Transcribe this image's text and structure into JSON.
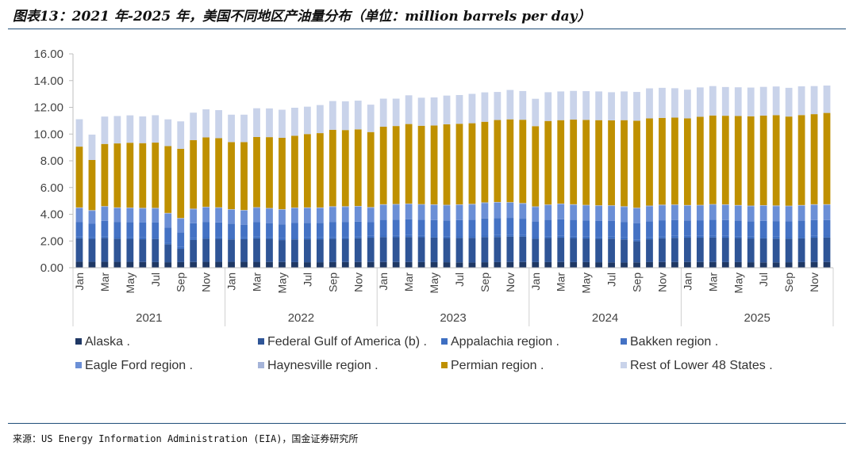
{
  "title": "图表13：2021 年-2025 年，美国不同地区产油量分布（单位：million barrels per day）",
  "source": "来源：US Energy Information Administration (EIA)，国金证券研究所",
  "chart_data": {
    "type": "bar",
    "stacked": true,
    "ylim": [
      0,
      16
    ],
    "yticks": [
      "0.00",
      "2.00",
      "4.00",
      "6.00",
      "8.00",
      "10.00",
      "12.00",
      "14.00",
      "16.00"
    ],
    "years": [
      "2021",
      "2022",
      "2023",
      "2024",
      "2025"
    ],
    "month_labels": [
      "Jan",
      "Mar",
      "May",
      "Jul",
      "Sep",
      "Nov"
    ],
    "categories": [
      "2021-01",
      "2021-02",
      "2021-03",
      "2021-04",
      "2021-05",
      "2021-06",
      "2021-07",
      "2021-08",
      "2021-09",
      "2021-10",
      "2021-11",
      "2021-12",
      "2022-01",
      "2022-02",
      "2022-03",
      "2022-04",
      "2022-05",
      "2022-06",
      "2022-07",
      "2022-08",
      "2022-09",
      "2022-10",
      "2022-11",
      "2022-12",
      "2023-01",
      "2023-02",
      "2023-03",
      "2023-04",
      "2023-05",
      "2023-06",
      "2023-07",
      "2023-08",
      "2023-09",
      "2023-10",
      "2023-11",
      "2023-12",
      "2024-01",
      "2024-02",
      "2024-03",
      "2024-04",
      "2024-05",
      "2024-06",
      "2024-07",
      "2024-08",
      "2024-09",
      "2024-10",
      "2024-11",
      "2024-12",
      "2025-01",
      "2025-02",
      "2025-03",
      "2025-04",
      "2025-05",
      "2025-06",
      "2025-07",
      "2025-08",
      "2025-09",
      "2025-10",
      "2025-11",
      "2025-12"
    ],
    "series": [
      {
        "name": "Alaska .",
        "color": "#1f3864",
        "values": [
          0.45,
          0.44,
          0.45,
          0.44,
          0.44,
          0.43,
          0.42,
          0.41,
          0.42,
          0.43,
          0.44,
          0.44,
          0.44,
          0.44,
          0.44,
          0.43,
          0.43,
          0.42,
          0.41,
          0.41,
          0.42,
          0.43,
          0.43,
          0.43,
          0.43,
          0.43,
          0.43,
          0.42,
          0.42,
          0.41,
          0.4,
          0.39,
          0.41,
          0.42,
          0.43,
          0.43,
          0.42,
          0.42,
          0.43,
          0.42,
          0.42,
          0.41,
          0.4,
          0.39,
          0.4,
          0.42,
          0.43,
          0.43,
          0.43,
          0.43,
          0.43,
          0.42,
          0.42,
          0.41,
          0.4,
          0.4,
          0.41,
          0.42,
          0.43,
          0.43
        ]
      },
      {
        "name": "Federal Gulf of America (b) .",
        "color": "#2f5597",
        "values": [
          1.75,
          1.72,
          1.78,
          1.74,
          1.72,
          1.7,
          1.73,
          1.35,
          1.0,
          1.65,
          1.74,
          1.72,
          1.68,
          1.7,
          1.76,
          1.73,
          1.64,
          1.7,
          1.72,
          1.72,
          1.75,
          1.73,
          1.78,
          1.82,
          1.86,
          1.85,
          1.87,
          1.86,
          1.84,
          1.81,
          1.83,
          1.84,
          1.88,
          1.88,
          1.9,
          1.9,
          1.75,
          1.8,
          1.82,
          1.8,
          1.77,
          1.75,
          1.78,
          1.73,
          1.58,
          1.71,
          1.78,
          1.81,
          1.82,
          1.82,
          1.84,
          1.83,
          1.8,
          1.78,
          1.8,
          1.78,
          1.76,
          1.78,
          1.82,
          1.83
        ]
      },
      {
        "name": "Appalachia region .",
        "color": "#3e6fc2",
        "values": [
          0.13,
          0.13,
          0.13,
          0.13,
          0.13,
          0.13,
          0.13,
          0.13,
          0.13,
          0.13,
          0.13,
          0.13,
          0.13,
          0.13,
          0.13,
          0.13,
          0.13,
          0.13,
          0.13,
          0.13,
          0.13,
          0.14,
          0.14,
          0.14,
          0.14,
          0.14,
          0.14,
          0.14,
          0.14,
          0.14,
          0.14,
          0.14,
          0.14,
          0.14,
          0.14,
          0.14,
          0.14,
          0.14,
          0.14,
          0.14,
          0.14,
          0.14,
          0.14,
          0.14,
          0.14,
          0.14,
          0.14,
          0.14,
          0.14,
          0.14,
          0.14,
          0.14,
          0.14,
          0.14,
          0.14,
          0.14,
          0.14,
          0.14,
          0.14,
          0.14
        ]
      },
      {
        "name": "Bakken region .",
        "color": "#4472c4",
        "values": [
          1.1,
          1.0,
          1.15,
          1.12,
          1.13,
          1.12,
          1.1,
          1.1,
          1.1,
          1.12,
          1.12,
          1.1,
          1.05,
          0.95,
          1.08,
          1.05,
          1.05,
          1.1,
          1.1,
          1.1,
          1.13,
          1.13,
          1.1,
          1.02,
          1.15,
          1.17,
          1.18,
          1.17,
          1.17,
          1.18,
          1.2,
          1.23,
          1.26,
          1.28,
          1.26,
          1.2,
          1.15,
          1.22,
          1.24,
          1.22,
          1.2,
          1.2,
          1.18,
          1.17,
          1.2,
          1.21,
          1.2,
          1.18,
          1.15,
          1.16,
          1.18,
          1.18,
          1.16,
          1.15,
          1.17,
          1.17,
          1.16,
          1.18,
          1.18,
          1.17
        ]
      },
      {
        "name": "Eagle Ford region .",
        "color": "#6b8fd6",
        "values": [
          1.03,
          0.97,
          1.05,
          1.03,
          1.03,
          1.05,
          1.05,
          1.06,
          1.02,
          1.04,
          1.08,
          1.08,
          1.03,
          1.05,
          1.07,
          1.08,
          1.08,
          1.1,
          1.1,
          1.1,
          1.12,
          1.12,
          1.12,
          1.08,
          1.12,
          1.13,
          1.13,
          1.12,
          1.12,
          1.12,
          1.12,
          1.13,
          1.15,
          1.15,
          1.13,
          1.12,
          1.08,
          1.1,
          1.12,
          1.12,
          1.12,
          1.12,
          1.12,
          1.12,
          1.12,
          1.12,
          1.12,
          1.12,
          1.1,
          1.1,
          1.12,
          1.12,
          1.12,
          1.12,
          1.12,
          1.12,
          1.12,
          1.12,
          1.13,
          1.13
        ]
      },
      {
        "name": "Haynesville region .",
        "color": "#a5b4d9",
        "values": [
          0.05,
          0.05,
          0.05,
          0.05,
          0.05,
          0.05,
          0.05,
          0.05,
          0.05,
          0.05,
          0.05,
          0.05,
          0.05,
          0.05,
          0.05,
          0.05,
          0.05,
          0.05,
          0.05,
          0.05,
          0.05,
          0.05,
          0.05,
          0.05,
          0.05,
          0.05,
          0.05,
          0.05,
          0.05,
          0.05,
          0.05,
          0.05,
          0.05,
          0.05,
          0.05,
          0.05,
          0.05,
          0.05,
          0.05,
          0.05,
          0.05,
          0.05,
          0.05,
          0.05,
          0.05,
          0.05,
          0.05,
          0.05,
          0.05,
          0.05,
          0.05,
          0.05,
          0.05,
          0.05,
          0.05,
          0.05,
          0.05,
          0.05,
          0.05,
          0.05
        ]
      },
      {
        "name": "Permian region .",
        "color": "#bf9000",
        "values": [
          4.55,
          3.75,
          4.65,
          4.79,
          4.85,
          4.84,
          4.88,
          5.0,
          5.18,
          5.13,
          5.19,
          5.17,
          5.02,
          5.08,
          5.25,
          5.3,
          5.34,
          5.37,
          5.49,
          5.56,
          5.72,
          5.7,
          5.73,
          5.61,
          5.8,
          5.83,
          5.95,
          5.86,
          5.9,
          6.02,
          6.03,
          6.03,
          6.03,
          6.13,
          6.19,
          6.23,
          6.0,
          6.25,
          6.24,
          6.33,
          6.36,
          6.37,
          6.36,
          6.44,
          6.51,
          6.52,
          6.49,
          6.5,
          6.48,
          6.59,
          6.63,
          6.63,
          6.66,
          6.68,
          6.7,
          6.75,
          6.67,
          6.73,
          6.74,
          6.83
        ]
      },
      {
        "name": "Rest of Lower 48 States .",
        "color": "#c9d3ea",
        "values": [
          2.05,
          1.9,
          2.05,
          2.05,
          2.05,
          2.0,
          2.05,
          2.0,
          2.05,
          2.05,
          2.1,
          2.1,
          2.05,
          2.05,
          2.15,
          2.15,
          2.1,
          2.1,
          2.05,
          2.1,
          2.15,
          2.15,
          2.15,
          2.05,
          2.1,
          2.05,
          2.15,
          2.1,
          2.1,
          2.15,
          2.15,
          2.2,
          2.2,
          2.1,
          2.2,
          2.15,
          2.05,
          2.15,
          2.15,
          2.15,
          2.15,
          2.15,
          2.1,
          2.15,
          2.15,
          2.25,
          2.25,
          2.2,
          2.15,
          2.2,
          2.2,
          2.15,
          2.15,
          2.15,
          2.15,
          2.15,
          2.15,
          2.15,
          2.1,
          2.05
        ]
      }
    ]
  }
}
